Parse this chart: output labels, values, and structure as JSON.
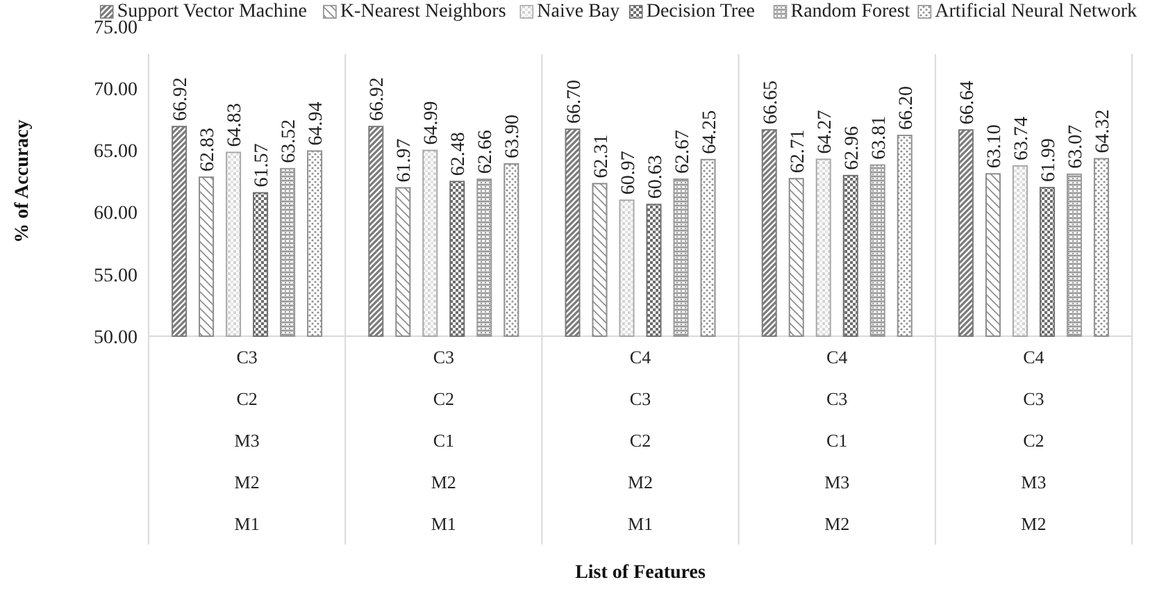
{
  "chart_data": {
    "type": "bar",
    "xlabel": "List of Features",
    "ylabel": "% of Accuracy",
    "categories": [
      "C3\nC2\nM3\nM2\nM1",
      "C3\nC2\nC1\nM2\nM1",
      "C4\nC3\nC2\nM2\nM1",
      "C4\nC3\nC1\nM3\nM2",
      "C4\nC3\nC2\nM3\nM2"
    ],
    "series": [
      {
        "name": "Support Vector Machine",
        "color": "#7a7a7a",
        "values": [
          66.92,
          66.92,
          66.7,
          66.65,
          66.64
        ],
        "value_labels": [
          "66.92",
          "66.92",
          "66.70",
          "66.65",
          "66.64"
        ]
      },
      {
        "name": "K-Nearest Neighbors",
        "color": "#8c8c8c",
        "values": [
          62.83,
          61.97,
          62.31,
          62.71,
          63.1
        ],
        "value_labels": [
          "62.83",
          "61.97",
          "62.31",
          "62.71",
          "63.10"
        ]
      },
      {
        "name": "Naive Bay",
        "color": "#a8a8a8",
        "values": [
          64.83,
          64.99,
          60.97,
          64.27,
          63.74
        ],
        "value_labels": [
          "64.83",
          "64.99",
          "60.97",
          "64.27",
          "63.74"
        ]
      },
      {
        "name": "Decision Tree",
        "color": "#6e6e6e",
        "values": [
          61.57,
          62.48,
          60.63,
          62.96,
          61.99
        ],
        "value_labels": [
          "61.57",
          "62.48",
          "60.63",
          "62.96",
          "61.99"
        ]
      },
      {
        "name": "Random Forest",
        "color": "#9a9a9a",
        "values": [
          63.52,
          62.66,
          62.67,
          63.81,
          63.07
        ],
        "value_labels": [
          "63.52",
          "62.66",
          "62.67",
          "63.81",
          "63.07"
        ]
      },
      {
        "name": "Artificial Neural Network",
        "color": "#909090",
        "values": [
          64.94,
          63.9,
          64.25,
          66.2,
          64.32
        ],
        "value_labels": [
          "64.94",
          "63.90",
          "64.25",
          "66.20",
          "64.32"
        ]
      }
    ],
    "ylim": [
      50,
      75
    ],
    "yticks": [
      {
        "value": 50,
        "label": "50.00"
      },
      {
        "value": 55,
        "label": "55.00"
      },
      {
        "value": 60,
        "label": "60.00"
      },
      {
        "value": 65,
        "label": "65.00"
      },
      {
        "value": 70,
        "label": "70.00"
      },
      {
        "value": 75,
        "label": "75.00"
      }
    ],
    "legend": "top",
    "grid": false
  }
}
